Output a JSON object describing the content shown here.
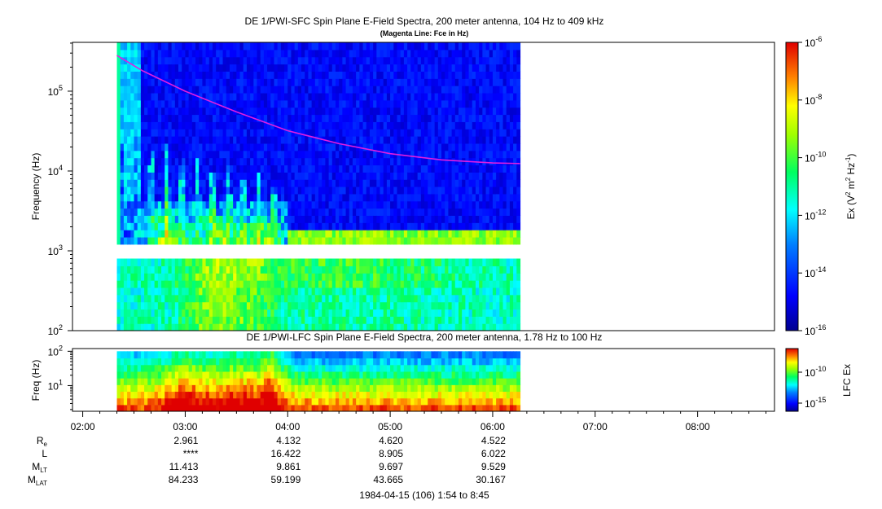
{
  "title": "DE 1/PWI-SFC  Spin Plane E-Field Spectra, 200 meter antenna, 104 Hz to 409 kHz",
  "subtitle": "(Magenta Line: Fce in Hz)",
  "colors": {
    "fce_line": "#e01ee0",
    "frame": "#000000",
    "gap": "#ffffff"
  },
  "chart_data": [
    {
      "type": "heatmap",
      "panel": "SFC",
      "title": "DE 1/PWI-SFC  Spin Plane E-Field Spectra, 200 meter antenna, 104 Hz to 409 kHz",
      "subtitle": "(Magenta Line: Fce in Hz)",
      "ylabel": "Frequency (Hz)",
      "yscale": "log",
      "ylim": [
        100,
        409000
      ],
      "yticks": [
        {
          "value": 100,
          "base": "10",
          "exp": "2"
        },
        {
          "value": 1000,
          "base": "10",
          "exp": "3"
        },
        {
          "value": 10000,
          "base": "10",
          "exp": "4"
        },
        {
          "value": 100000,
          "base": "10",
          "exp": "5"
        }
      ],
      "x_data_start": "02:20",
      "x_data_end": "06:16",
      "gap_hz": [
        900,
        1040
      ],
      "colorbar": {
        "label_prefix": "Ex (V",
        "label_sup1": "2",
        "label_mid": " m",
        "label_sup2": "2",
        "label_mid2": " Hz",
        "label_sup3": "-1",
        "label_suffix": ")",
        "scale": "log",
        "range_exp": [
          -16,
          -6
        ],
        "ticks": [
          {
            "exp": "-6"
          },
          {
            "exp": "-8"
          },
          {
            "exp": "-10"
          },
          {
            "exp": "-12"
          },
          {
            "exp": "-14"
          },
          {
            "exp": "-16"
          }
        ]
      },
      "fce_series": {
        "name": "Fce",
        "points": [
          [
            "02:20",
            280000
          ],
          [
            "02:35",
            180000
          ],
          [
            "03:00",
            100000
          ],
          [
            "03:30",
            55000
          ],
          [
            "04:00",
            32000
          ],
          [
            "04:30",
            22000
          ],
          [
            "05:00",
            16500
          ],
          [
            "05:30",
            13800
          ],
          [
            "06:00",
            12600
          ],
          [
            "06:16",
            12400
          ]
        ]
      }
    },
    {
      "type": "heatmap",
      "panel": "LFC",
      "title": "DE 1/PWI-LFC  Spin Plane E-Field Spectra, 200 meter antenna, 1.78 Hz to 100 Hz",
      "ylabel": "Freq (Hz)",
      "yscale": "log",
      "ylim": [
        1.78,
        120
      ],
      "yticks": [
        {
          "value": 10,
          "base": "10",
          "exp": "1"
        },
        {
          "value": 100,
          "base": "10",
          "exp": "2"
        }
      ],
      "x_data_start": "02:20",
      "x_data_end": "06:16",
      "colorbar": {
        "label": "LFC Ex",
        "scale": "log",
        "ticks": [
          {
            "exp": "-10"
          },
          {
            "exp": "-15"
          }
        ]
      }
    }
  ],
  "time_axis": {
    "range": [
      "01:54",
      "08:45"
    ],
    "ticks": [
      "02:00",
      "03:00",
      "04:00",
      "05:00",
      "06:00",
      "07:00",
      "08:00"
    ]
  },
  "ephemeris": {
    "rows": [
      {
        "label": "R",
        "sub": "e",
        "values": [
          "2.961",
          "4.132",
          "4.620",
          "4.522"
        ]
      },
      {
        "label": "L",
        "sub": "",
        "values": [
          "****",
          "16.422",
          "8.905",
          "6.022"
        ]
      },
      {
        "label": "M",
        "sub": "LT",
        "values": [
          "11.413",
          "9.861",
          "9.697",
          "9.529"
        ]
      },
      {
        "label": "M",
        "sub": "LAT",
        "values": [
          "84.233",
          "59.199",
          "43.665",
          "30.167"
        ]
      }
    ],
    "times": [
      "03:00",
      "04:00",
      "05:00",
      "06:00"
    ]
  },
  "footer": "1984-04-15 (106) 1:54 to 8:45"
}
